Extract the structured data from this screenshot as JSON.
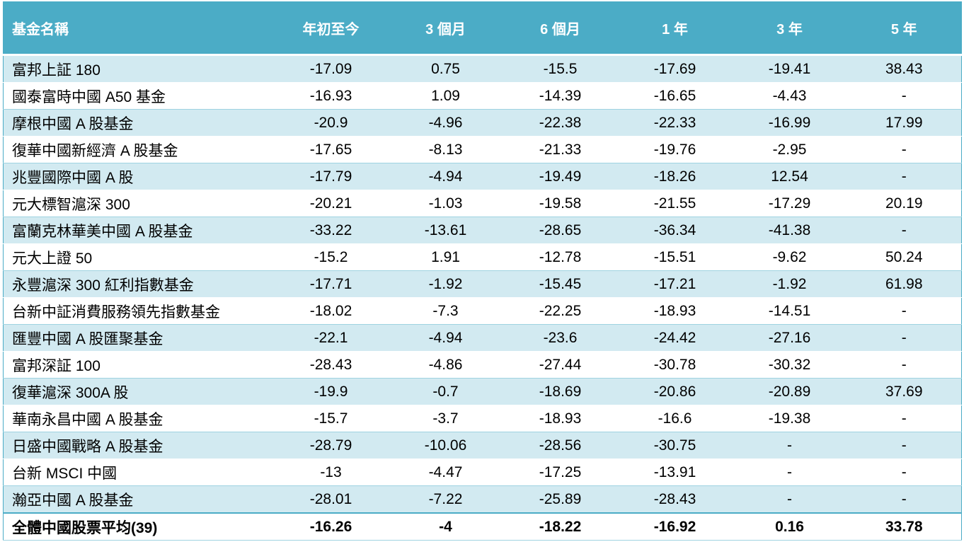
{
  "table": {
    "headers": [
      "基金名稱",
      "年初至今",
      "3 個月",
      "6 個月",
      "1 年",
      "3 年",
      "5 年"
    ],
    "rows": [
      [
        "富邦上証 180",
        "-17.09",
        "0.75",
        "-15.5",
        "-17.69",
        "-19.41",
        "38.43"
      ],
      [
        "國泰富時中國 A50  基金",
        "-16.93",
        "1.09",
        "-14.39",
        "-16.65",
        "-4.43",
        "-"
      ],
      [
        "摩根中國 A 股基金",
        "-20.9",
        "-4.96",
        "-22.38",
        "-22.33",
        "-16.99",
        "17.99"
      ],
      [
        "復華中國新經濟 A 股基金",
        "-17.65",
        "-8.13",
        "-21.33",
        "-19.76",
        "-2.95",
        "-"
      ],
      [
        "兆豐國際中國 A 股",
        "-17.79",
        "-4.94",
        "-19.49",
        "-18.26",
        "12.54",
        "-"
      ],
      [
        "元大標智滬深 300",
        "-20.21",
        "-1.03",
        "-19.58",
        "-21.55",
        "-17.29",
        "20.19"
      ],
      [
        "富蘭克林華美中國 A 股基金",
        "-33.22",
        "-13.61",
        "-28.65",
        "-36.34",
        "-41.38",
        "-"
      ],
      [
        "元大上證 50",
        "-15.2",
        "1.91",
        "-12.78",
        "-15.51",
        "-9.62",
        "50.24"
      ],
      [
        "永豐滬深 300 紅利指數基金",
        "-17.71",
        "-1.92",
        "-15.45",
        "-17.21",
        "-1.92",
        "61.98"
      ],
      [
        "台新中証消費服務領先指數基金",
        "-18.02",
        "-7.3",
        "-22.25",
        "-18.93",
        "-14.51",
        "-"
      ],
      [
        "匯豐中國 A 股匯聚基金",
        "-22.1",
        "-4.94",
        "-23.6",
        "-24.42",
        "-27.16",
        "-"
      ],
      [
        "富邦深証 100",
        "-28.43",
        "-4.86",
        "-27.44",
        "-30.78",
        "-30.32",
        "-"
      ],
      [
        "復華滬深 300A 股",
        "-19.9",
        "-0.7",
        "-18.69",
        "-20.86",
        "-20.89",
        "37.69"
      ],
      [
        "華南永昌中國 A 股基金",
        "-15.7",
        "-3.7",
        "-18.93",
        "-16.6",
        "-19.38",
        "-"
      ],
      [
        "日盛中國戰略 A 股基金",
        "-28.79",
        "-10.06",
        "-28.56",
        "-30.75",
        "-",
        "-"
      ],
      [
        "台新 MSCI 中國",
        "-13",
        "-4.47",
        "-17.25",
        "-13.91",
        "-",
        "-"
      ],
      [
        "瀚亞中國 A 股基金",
        "-28.01",
        "-7.22",
        "-25.89",
        "-28.43",
        "-",
        "-"
      ]
    ],
    "total": [
      "全體中國股票平均(39)",
      "-16.26",
      "-4",
      "-18.22",
      "-16.92",
      "0.16",
      "33.78"
    ]
  }
}
